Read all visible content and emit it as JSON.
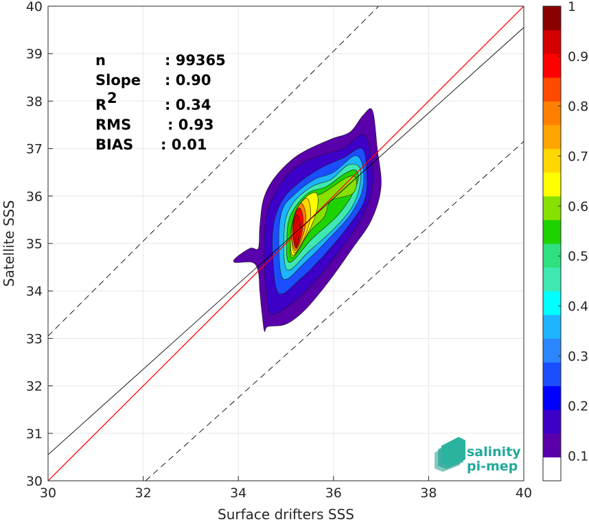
{
  "chart_data": {
    "type": "contour",
    "xlabel": "Surface drifters SSS",
    "ylabel": "Satellite SSS",
    "xlim": [
      30,
      40
    ],
    "ylim": [
      30,
      40
    ],
    "x_ticks": [
      "30",
      "32",
      "34",
      "36",
      "38",
      "40"
    ],
    "y_ticks": [
      "30",
      "31",
      "32",
      "33",
      "34",
      "35",
      "36",
      "37",
      "38",
      "39",
      "40"
    ],
    "grid": true,
    "stats": [
      {
        "label": "n",
        "value": ": 99365"
      },
      {
        "label": "Slope",
        "value": ": 0.90"
      },
      {
        "label": "R",
        "sup": "2",
        "value": ": 0.34"
      },
      {
        "label": "RMS",
        "value": ": 0.93"
      },
      {
        "label": "BIAS",
        "value": ": 0.01"
      }
    ],
    "lines": {
      "identity": {
        "color": "#ff0000",
        "points": [
          [
            30,
            30
          ],
          [
            40,
            40
          ]
        ]
      },
      "regression": {
        "color": "#000000",
        "points": [
          [
            30,
            30.55
          ],
          [
            40,
            39.55
          ]
        ]
      },
      "upper_dashed": {
        "color": "#000000",
        "dash": true,
        "points": [
          [
            30,
            33.05
          ],
          [
            40,
            43.05
          ]
        ]
      },
      "lower_dashed": {
        "color": "#000000",
        "dash": true,
        "points": [
          [
            32.05,
            30
          ],
          [
            40,
            37.15
          ]
        ]
      }
    },
    "colorbar": {
      "ticks": [
        "0.1",
        "0.2",
        "0.3",
        "0.4",
        "0.5",
        "0.6",
        "0.7",
        "0.8",
        "0.9",
        "1"
      ],
      "tick_values": [
        0.1,
        0.2,
        0.3,
        0.4,
        0.5,
        0.6,
        0.7,
        0.8,
        0.9,
        1.0
      ],
      "colors": [
        "#ffffff",
        "#5a00aa",
        "#3c00c8",
        "#0000ff",
        "#1a4eff",
        "#2a86ff",
        "#1eb4ff",
        "#00ffff",
        "#3ee8b0",
        "#2fe080",
        "#1ed200",
        "#86e000",
        "#ffff00",
        "#ffd700",
        "#ffa500",
        "#ff7f00",
        "#ff4a00",
        "#ff0000",
        "#d40000",
        "#8b0000"
      ]
    },
    "density_peak": {
      "x": 35.25,
      "y": 35.1,
      "value": 1.0
    },
    "levels": [
      {
        "level": 0.05,
        "color": "#5a00aa",
        "points": [
          [
            34.55,
            33.15
          ],
          [
            34.62,
            33.25
          ],
          [
            35.0,
            33.3
          ],
          [
            35.4,
            33.6
          ],
          [
            35.9,
            34.2
          ],
          [
            36.4,
            34.9
          ],
          [
            36.8,
            35.5
          ],
          [
            37.0,
            36.2
          ],
          [
            36.92,
            37.0
          ],
          [
            36.82,
            37.8
          ],
          [
            36.62,
            37.7
          ],
          [
            36.35,
            37.35
          ],
          [
            35.95,
            37.2
          ],
          [
            35.4,
            36.95
          ],
          [
            35.05,
            36.7
          ],
          [
            34.7,
            36.3
          ],
          [
            34.52,
            35.9
          ],
          [
            34.45,
            35.35
          ],
          [
            34.42,
            34.9
          ],
          [
            34.25,
            34.9
          ],
          [
            33.95,
            34.7
          ],
          [
            33.93,
            34.6
          ],
          [
            34.3,
            34.6
          ],
          [
            34.42,
            34.4
          ],
          [
            34.45,
            34.0
          ],
          [
            34.5,
            33.5
          ]
        ]
      },
      {
        "level": 0.1,
        "color": "#3c00c8",
        "points": [
          [
            34.7,
            33.5
          ],
          [
            35.2,
            33.8
          ],
          [
            35.7,
            34.3
          ],
          [
            36.2,
            34.95
          ],
          [
            36.6,
            35.55
          ],
          [
            36.82,
            36.2
          ],
          [
            36.78,
            36.9
          ],
          [
            36.62,
            37.3
          ],
          [
            36.2,
            37.0
          ],
          [
            35.7,
            36.85
          ],
          [
            35.2,
            36.6
          ],
          [
            34.85,
            36.2
          ],
          [
            34.62,
            35.7
          ],
          [
            34.55,
            35.2
          ],
          [
            34.55,
            34.5
          ],
          [
            34.6,
            33.9
          ]
        ]
      },
      {
        "level": 0.2,
        "color": "#1a4eff",
        "points": [
          [
            34.85,
            33.95
          ],
          [
            35.3,
            34.25
          ],
          [
            35.8,
            34.75
          ],
          [
            36.3,
            35.35
          ],
          [
            36.65,
            35.9
          ],
          [
            36.7,
            36.5
          ],
          [
            36.6,
            37.0
          ],
          [
            36.2,
            36.8
          ],
          [
            35.75,
            36.6
          ],
          [
            35.3,
            36.3
          ],
          [
            34.95,
            35.95
          ],
          [
            34.75,
            35.45
          ],
          [
            34.72,
            34.75
          ]
        ]
      },
      {
        "level": 0.3,
        "color": "#1eb4ff",
        "points": [
          [
            34.95,
            34.25
          ],
          [
            35.4,
            34.6
          ],
          [
            35.9,
            35.1
          ],
          [
            36.35,
            35.6
          ],
          [
            36.6,
            36.1
          ],
          [
            36.62,
            36.6
          ],
          [
            36.45,
            36.85
          ],
          [
            36.0,
            36.5
          ],
          [
            35.6,
            36.35
          ],
          [
            35.2,
            36.05
          ],
          [
            34.92,
            35.7
          ],
          [
            34.85,
            35.0
          ]
        ]
      },
      {
        "level": 0.4,
        "color": "#3ee8b0",
        "points": [
          [
            35.02,
            34.45
          ],
          [
            35.5,
            34.85
          ],
          [
            36.0,
            35.3
          ],
          [
            36.38,
            35.75
          ],
          [
            36.55,
            36.2
          ],
          [
            36.55,
            36.6
          ],
          [
            36.3,
            36.65
          ],
          [
            35.95,
            36.35
          ],
          [
            35.55,
            36.2
          ],
          [
            35.15,
            35.85
          ],
          [
            34.97,
            35.35
          ]
        ]
      },
      {
        "level": 0.5,
        "color": "#1ed200",
        "points": [
          [
            35.08,
            34.6
          ],
          [
            35.55,
            35.1
          ],
          [
            36.05,
            35.55
          ],
          [
            36.35,
            35.95
          ],
          [
            36.52,
            36.35
          ],
          [
            36.45,
            36.55
          ],
          [
            36.2,
            36.45
          ],
          [
            35.85,
            36.2
          ],
          [
            35.45,
            36.05
          ],
          [
            35.1,
            35.6
          ],
          [
            35.02,
            35.1
          ]
        ]
      },
      {
        "level": 0.6,
        "color": "#86e000",
        "points": [
          [
            35.12,
            34.7
          ],
          [
            35.5,
            35.25
          ],
          [
            35.8,
            35.55
          ],
          [
            35.95,
            35.9
          ],
          [
            36.4,
            36.05
          ],
          [
            36.48,
            36.35
          ],
          [
            36.3,
            36.4
          ],
          [
            35.75,
            36.05
          ],
          [
            35.4,
            35.95
          ],
          [
            35.15,
            35.5
          ]
        ]
      },
      {
        "level": 0.65,
        "color": "#ffff00",
        "points": [
          [
            35.15,
            34.75
          ],
          [
            35.45,
            35.2
          ],
          [
            35.65,
            35.7
          ],
          [
            35.65,
            36.05
          ],
          [
            35.45,
            36.0
          ],
          [
            35.22,
            35.7
          ],
          [
            35.1,
            35.2
          ]
        ]
      },
      {
        "level": 0.7,
        "color": "#ffd700",
        "points": [
          [
            35.18,
            34.8
          ],
          [
            35.4,
            35.15
          ],
          [
            35.52,
            35.6
          ],
          [
            35.45,
            35.95
          ],
          [
            35.25,
            35.75
          ],
          [
            35.12,
            35.25
          ]
        ]
      },
      {
        "level": 0.8,
        "color": "#ff7f00",
        "points": [
          [
            35.2,
            34.85
          ],
          [
            35.37,
            35.2
          ],
          [
            35.42,
            35.6
          ],
          [
            35.32,
            35.85
          ],
          [
            35.18,
            35.6
          ],
          [
            35.12,
            35.2
          ]
        ]
      },
      {
        "level": 0.9,
        "color": "#ff0000",
        "points": [
          [
            35.22,
            34.9
          ],
          [
            35.33,
            35.2
          ],
          [
            35.36,
            35.55
          ],
          [
            35.28,
            35.75
          ],
          [
            35.17,
            35.55
          ],
          [
            35.15,
            35.15
          ]
        ]
      },
      {
        "level": 1.0,
        "color": "#d40000",
        "points": [
          [
            35.2,
            34.92
          ],
          [
            35.28,
            35.15
          ],
          [
            35.3,
            35.45
          ],
          [
            35.22,
            35.6
          ],
          [
            35.15,
            35.3
          ]
        ]
      }
    ]
  },
  "logo": {
    "line1": "salinity",
    "line2": "pi-mep"
  }
}
